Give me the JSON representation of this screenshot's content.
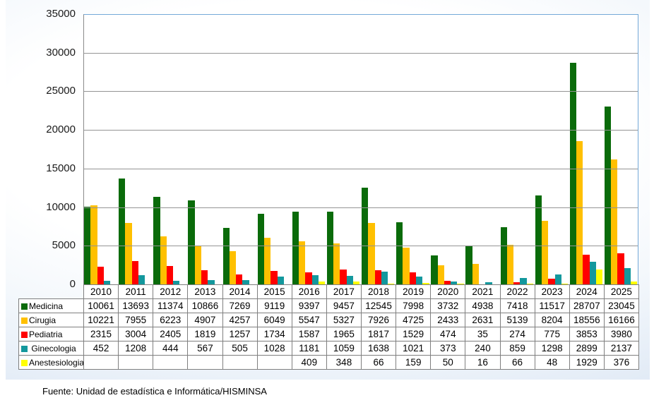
{
  "chart_data": {
    "type": "bar",
    "title": "",
    "xlabel": "",
    "ylabel": "",
    "ylim": [
      0,
      35000
    ],
    "ytick_step": 5000,
    "yticks": [
      "35000",
      "30000",
      "25000",
      "20000",
      "15000",
      "10000",
      "5000",
      "0"
    ],
    "grid": "horizontal",
    "legend_position": "table-left",
    "categories": [
      "2010",
      "2011",
      "2012",
      "2013",
      "2014",
      "2015",
      "2016",
      "2017",
      "2018",
      "2019",
      "2020",
      "2021",
      "2022",
      "2023",
      "2024",
      "2025"
    ],
    "series": [
      {
        "name": "Medicina",
        "color": "#0a6b0a",
        "values": [
          10061,
          13693,
          11374,
          10866,
          7269,
          9119,
          9397,
          9457,
          12545,
          7998,
          3732,
          4938,
          7418,
          11517,
          28707,
          23045
        ]
      },
      {
        "name": "Cirugia",
        "color": "#ffc000",
        "values": [
          10221,
          7955,
          6223,
          4907,
          4257,
          6049,
          5547,
          5327,
          7926,
          4725,
          2433,
          2631,
          5139,
          8204,
          18556,
          16166
        ]
      },
      {
        "name": "Pediatria",
        "color": "#ff0000",
        "values": [
          2315,
          3004,
          2405,
          1819,
          1257,
          1734,
          1587,
          1965,
          1817,
          1529,
          474,
          35,
          274,
          775,
          3853,
          3980
        ]
      },
      {
        "name": " Ginecologia",
        "color": "#13989d",
        "values": [
          452,
          1208,
          444,
          567,
          505,
          1028,
          1181,
          1059,
          1638,
          1021,
          373,
          240,
          859,
          1298,
          2899,
          2137
        ]
      },
      {
        "name": "Anestesiologia",
        "color": "#ffff00",
        "values": [
          null,
          null,
          null,
          null,
          null,
          null,
          409,
          348,
          66,
          159,
          50,
          16,
          66,
          48,
          1929,
          376
        ]
      }
    ],
    "colors": {
      "plot_border": "#74a9d8",
      "gridline": "#949494",
      "table_border": "#7f7f7f",
      "axis_line": "#8a8a8a"
    }
  },
  "footer": {
    "source_text": "Fuente: Unidad de estadística e Informática/HISMINSA"
  }
}
